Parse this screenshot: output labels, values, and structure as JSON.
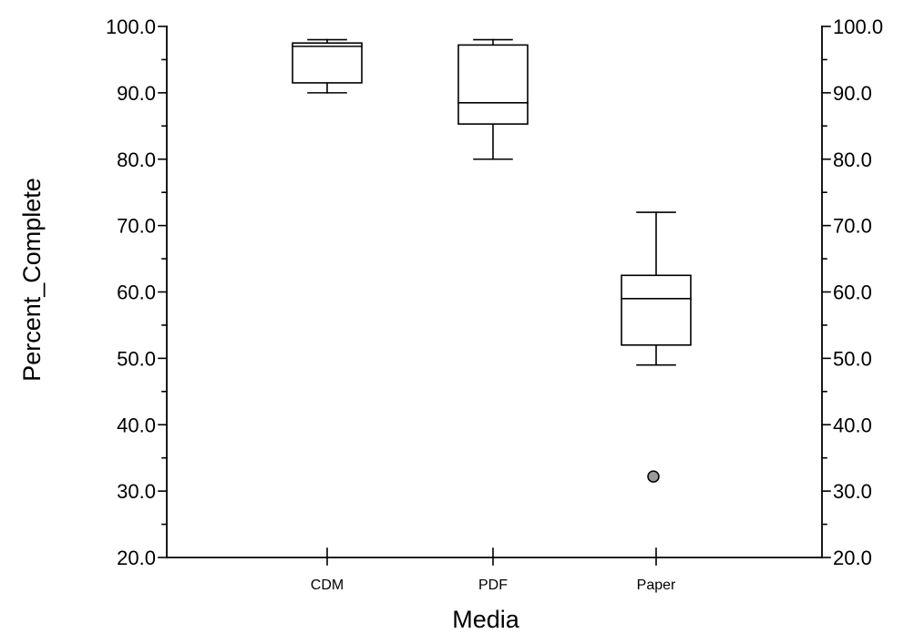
{
  "chart_data": {
    "type": "box",
    "xlabel": "Media",
    "ylabel": "Percent_Complete",
    "ylim": [
      20.0,
      100.0
    ],
    "y_ticks": [
      "20.0",
      "30.0",
      "40.0",
      "50.0",
      "60.0",
      "70.0",
      "80.0",
      "90.0",
      "100.0"
    ],
    "right_axis_mirrors_left": true,
    "grid": false,
    "legend": "none",
    "colors": {
      "box_stroke": "#000000",
      "box_fill": "#ffffff",
      "outlier_fill": "#9a9a9a"
    },
    "categories": [
      "CDM",
      "PDF",
      "Paper"
    ],
    "boxes": [
      {
        "category": "CDM",
        "whisker_low": 90.0,
        "q1": 91.5,
        "median": 97.0,
        "q3": 97.5,
        "whisker_high": 98.0,
        "outliers": []
      },
      {
        "category": "PDF",
        "whisker_low": 80.0,
        "q1": 85.3,
        "median": 88.5,
        "q3": 97.2,
        "whisker_high": 98.0,
        "outliers": []
      },
      {
        "category": "Paper",
        "whisker_low": 49.0,
        "q1": 52.0,
        "median": 59.0,
        "q3": 62.5,
        "whisker_high": 72.0,
        "outliers": [
          32.2
        ]
      }
    ]
  }
}
